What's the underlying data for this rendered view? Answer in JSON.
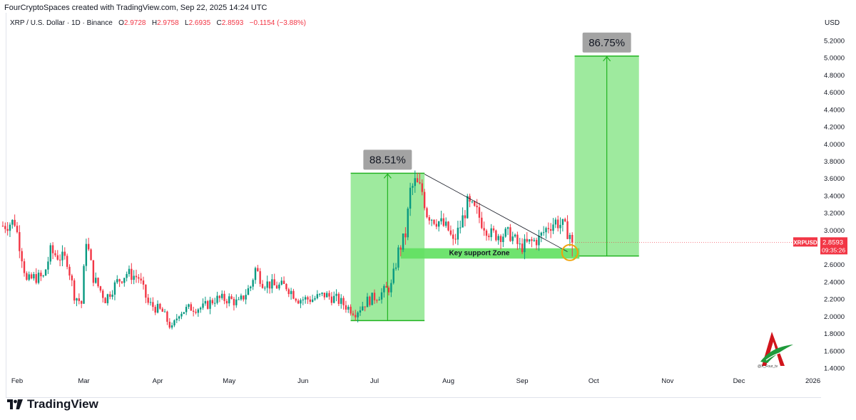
{
  "header": {
    "attribution": "FourCryptoSpaces created with TradingView.com, Sep 22, 2025 14:24 UTC"
  },
  "symbol": {
    "name": "XRP / U.S. Dollar · 1D · Binance",
    "open_label": "O",
    "open": "2.9728",
    "high_label": "H",
    "high": "2.9758",
    "low_label": "L",
    "low": "2.6935",
    "close_label": "C",
    "close": "2.8593",
    "change": "−0.1154 (−3.88%)"
  },
  "price_axis": {
    "currency": "USD",
    "ticks": [
      "5.2000",
      "5.0000",
      "4.8000",
      "4.6000",
      "4.4000",
      "4.2000",
      "4.0000",
      "3.8000",
      "3.6000",
      "3.4000",
      "3.2000",
      "3.0000",
      "2.6000",
      "2.4000",
      "2.2000",
      "2.0000",
      "1.8000",
      "1.6000",
      "1.4000"
    ],
    "last_price_label": "XRPUSD",
    "last_price": "2.8593",
    "countdown": "09:35:26"
  },
  "branding": {
    "tv_logo_text": "TradingView",
    "watermark_text": "@X_Four_tv"
  },
  "colors": {
    "up": "#089981",
    "down": "#f23645",
    "zone_fill": "#7ee37e",
    "zone_edge": "#22b322",
    "label_bg": "#a3a3a3",
    "target_circle": "#f0a30a"
  },
  "chart_data": {
    "type": "candlestick",
    "symbol": "XRP / U.S. Dollar",
    "interval": "1D",
    "exchange": "Binance",
    "ylim": [
      1.3,
      5.3
    ],
    "x_ticks": [
      "Feb",
      "Mar",
      "Apr",
      "May",
      "Jun",
      "Jul",
      "Aug",
      "Sep",
      "Oct",
      "Nov",
      "Dec",
      "2026"
    ],
    "x_tick_dates": [
      "2025-02-01",
      "2025-03-01",
      "2025-04-01",
      "2025-05-01",
      "2025-06-01",
      "2025-07-01",
      "2025-08-01",
      "2025-09-01",
      "2025-10-01",
      "2025-11-01",
      "2025-12-01",
      "2026-01-01"
    ],
    "price_path": [
      [
        "2025-01-26",
        3.05
      ],
      [
        "2025-01-31",
        3.1
      ],
      [
        "2025-02-03",
        2.7
      ],
      [
        "2025-02-05",
        2.4
      ],
      [
        "2025-02-08",
        2.45
      ],
      [
        "2025-02-12",
        2.45
      ],
      [
        "2025-02-15",
        2.75
      ],
      [
        "2025-02-18",
        2.7
      ],
      [
        "2025-02-22",
        2.65
      ],
      [
        "2025-02-25",
        2.25
      ],
      [
        "2025-02-28",
        2.15
      ],
      [
        "2025-03-02",
        2.9
      ],
      [
        "2025-03-05",
        2.45
      ],
      [
        "2025-03-10",
        2.2
      ],
      [
        "2025-03-15",
        2.4
      ],
      [
        "2025-03-19",
        2.5
      ],
      [
        "2025-03-24",
        2.45
      ],
      [
        "2025-03-28",
        2.15
      ],
      [
        "2025-04-03",
        2.05
      ],
      [
        "2025-04-07",
        1.85
      ],
      [
        "2025-04-10",
        2.05
      ],
      [
        "2025-04-15",
        2.1
      ],
      [
        "2025-04-20",
        2.1
      ],
      [
        "2025-04-25",
        2.2
      ],
      [
        "2025-05-01",
        2.2
      ],
      [
        "2025-05-05",
        2.15
      ],
      [
        "2025-05-10",
        2.35
      ],
      [
        "2025-05-12",
        2.55
      ],
      [
        "2025-05-15",
        2.4
      ],
      [
        "2025-05-20",
        2.35
      ],
      [
        "2025-05-25",
        2.35
      ],
      [
        "2025-05-30",
        2.2
      ],
      [
        "2025-06-05",
        2.2
      ],
      [
        "2025-06-10",
        2.25
      ],
      [
        "2025-06-15",
        2.2
      ],
      [
        "2025-06-20",
        2.1
      ],
      [
        "2025-06-23",
        2.05
      ],
      [
        "2025-06-28",
        2.18
      ],
      [
        "2025-07-03",
        2.25
      ],
      [
        "2025-07-08",
        2.35
      ],
      [
        "2025-07-11",
        2.75
      ],
      [
        "2025-07-14",
        2.95
      ],
      [
        "2025-07-16",
        3.45
      ],
      [
        "2025-07-18",
        3.55
      ],
      [
        "2025-07-21",
        3.45
      ],
      [
        "2025-07-23",
        3.2
      ],
      [
        "2025-07-25",
        3.15
      ],
      [
        "2025-07-28",
        3.1
      ],
      [
        "2025-08-01",
        3.0
      ],
      [
        "2025-08-03",
        2.85
      ],
      [
        "2025-08-06",
        3.05
      ],
      [
        "2025-08-09",
        3.3
      ],
      [
        "2025-08-13",
        3.2
      ],
      [
        "2025-08-15",
        3.1
      ],
      [
        "2025-08-19",
        2.95
      ],
      [
        "2025-08-23",
        2.95
      ],
      [
        "2025-08-27",
        2.95
      ],
      [
        "2025-08-31",
        2.8
      ],
      [
        "2025-09-04",
        2.85
      ],
      [
        "2025-09-08",
        2.9
      ],
      [
        "2025-09-12",
        3.05
      ],
      [
        "2025-09-15",
        3.1
      ],
      [
        "2025-09-18",
        3.05
      ],
      [
        "2025-09-21",
        2.95
      ],
      [
        "2025-09-22",
        2.86
      ]
    ],
    "annotations": [
      {
        "type": "price_range",
        "label": "88.51%",
        "from_date": "2025-06-21",
        "to_date": "2025-07-22",
        "low": 1.95,
        "high": 3.66
      },
      {
        "type": "price_range",
        "label": "86.75%",
        "from_date": "2025-09-23",
        "to_date": "2025-10-20",
        "low": 2.7,
        "high": 5.02
      },
      {
        "type": "zone",
        "label": "Key support Zone",
        "from_date": "2025-07-12",
        "to_date": "2025-09-25",
        "low": 2.67,
        "high": 2.79
      },
      {
        "type": "trendline",
        "from_date": "2025-07-22",
        "from_price": 3.65,
        "to_date": "2025-09-20",
        "to_price": 2.75
      },
      {
        "type": "circle",
        "date": "2025-09-21",
        "price": 2.74
      }
    ]
  }
}
